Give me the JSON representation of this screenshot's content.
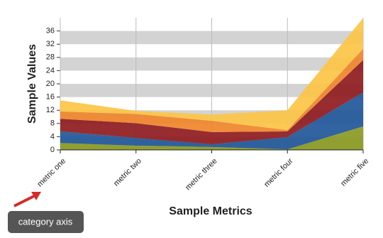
{
  "chart_data": {
    "type": "stacked_area",
    "y_label": "Sample Values",
    "x_label": "Sample Metrics",
    "categories": [
      "metric one",
      "metric two",
      "metric three",
      "metric four",
      "metric five"
    ],
    "series": [
      {
        "color": "#8a9a22",
        "values": [
          2.1,
          1.3,
          0.9,
          0.2,
          7.1
        ]
      },
      {
        "color": "#1f5799",
        "values": [
          3.5,
          2.3,
          0.8,
          3.7,
          10.3
        ]
      },
      {
        "color": "#8e1b1e",
        "values": [
          3.8,
          4.5,
          3.7,
          1.7,
          9.8
        ]
      },
      {
        "color": "#f0842a",
        "values": [
          2.2,
          2.8,
          3.4,
          0.4,
          3.4
        ]
      },
      {
        "color": "#fcc445",
        "values": [
          3.4,
          0.9,
          1.9,
          6,
          9.3
        ]
      }
    ],
    "ylim": [
      0,
      40
    ],
    "yticks": [
      0,
      4,
      8,
      12,
      16,
      20,
      24,
      28,
      32,
      36
    ],
    "band_grid": true,
    "annotation": "category axis"
  }
}
